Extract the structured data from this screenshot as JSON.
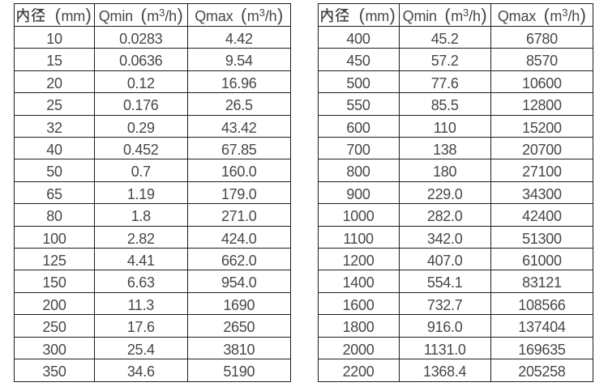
{
  "style": {
    "background": "#ffffff",
    "border_color": "#1d1d1d",
    "text_color": "#474747"
  },
  "tables": [
    {
      "name": "small-diameter-flow-table",
      "headers": [
        "内径（mm）",
        "Qmin（m³/h）",
        "Qmax（m³/h）"
      ],
      "rows": [
        [
          "10",
          "0.0283",
          "4.42"
        ],
        [
          "15",
          "0.0636",
          "9.54"
        ],
        [
          "20",
          "0.12",
          "16.96"
        ],
        [
          "25",
          "0.176",
          "26.5"
        ],
        [
          "32",
          "0.29",
          "43.42"
        ],
        [
          "40",
          "0.452",
          "67.85"
        ],
        [
          "50",
          "0.7",
          "160.0"
        ],
        [
          "65",
          "1.19",
          "179.0"
        ],
        [
          "80",
          "1.8",
          "271.0"
        ],
        [
          "100",
          "2.82",
          "424.0"
        ],
        [
          "125",
          "4.41",
          "662.0"
        ],
        [
          "150",
          "6.63",
          "954.0"
        ],
        [
          "200",
          "11.3",
          "1690"
        ],
        [
          "250",
          "17.6",
          "2650"
        ],
        [
          "300",
          "25.4",
          "3810"
        ],
        [
          "350",
          "34.6",
          "5190"
        ]
      ]
    },
    {
      "name": "large-diameter-flow-table",
      "headers": [
        "内径（mm）",
        "Qmin（m³/h）",
        "Qmax（m³/h）"
      ],
      "rows": [
        [
          "400",
          "45.2",
          "6780"
        ],
        [
          "450",
          "57.2",
          "8570"
        ],
        [
          "500",
          "77.6",
          "10600"
        ],
        [
          "550",
          "85.5",
          "12800"
        ],
        [
          "600",
          "110",
          "15200"
        ],
        [
          "700",
          "138",
          "20700"
        ],
        [
          "800",
          "180",
          "27100"
        ],
        [
          "900",
          "229.0",
          "34300"
        ],
        [
          "1000",
          "282.0",
          "42400"
        ],
        [
          "1100",
          "342.0",
          "51300"
        ],
        [
          "1200",
          "407.0",
          "61000"
        ],
        [
          "1400",
          "554.1",
          "83121"
        ],
        [
          "1600",
          "732.7",
          "108566"
        ],
        [
          "1800",
          "916.0",
          "137404"
        ],
        [
          "2000",
          "1131.0",
          "169635"
        ],
        [
          "2200",
          "1368.4",
          "205258"
        ]
      ]
    }
  ]
}
